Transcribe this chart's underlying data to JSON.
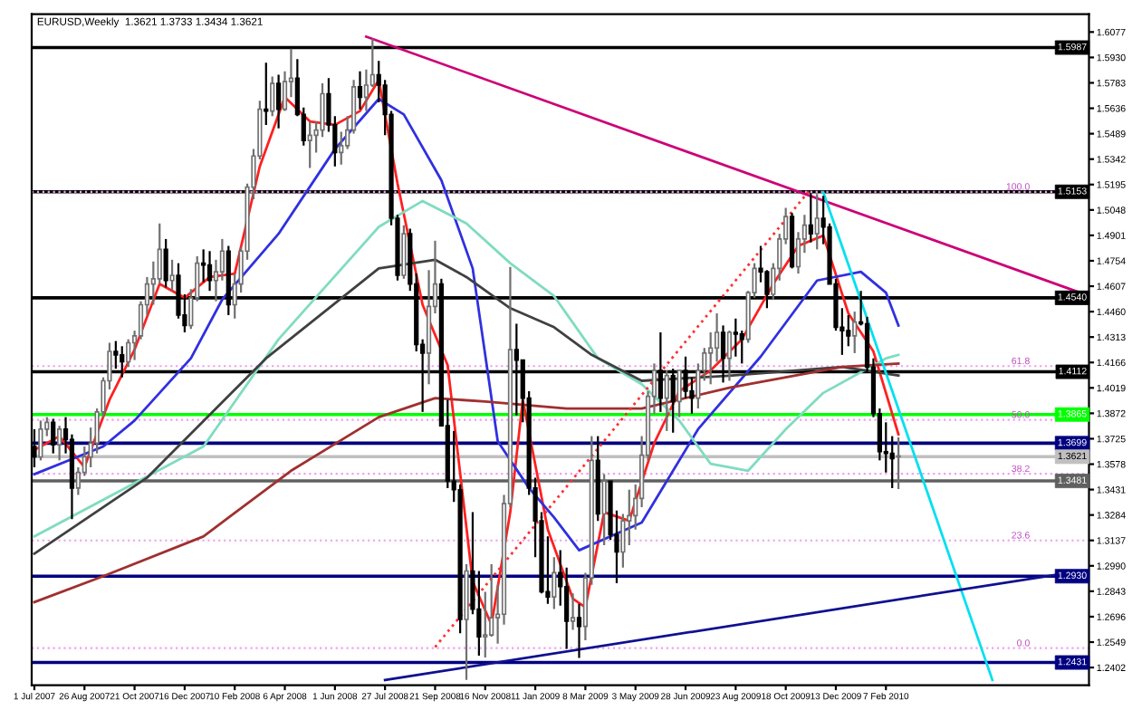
{
  "chart_data": {
    "type": "candlestick",
    "title": "EURUSD,Weekly  1.3621 1.3733 1.3434 1.3621",
    "x": [
      "2007-07-01",
      "2007-07-08",
      "2007-07-15",
      "2007-07-22",
      "2007-07-29",
      "2007-08-05",
      "2007-08-12",
      "2007-08-19",
      "2007-08-26",
      "2007-09-02",
      "2007-09-09",
      "2007-09-16",
      "2007-09-23",
      "2007-09-30",
      "2007-10-07",
      "2007-10-14",
      "2007-10-21",
      "2007-10-28",
      "2007-11-04",
      "2007-11-11",
      "2007-11-18",
      "2007-11-25",
      "2007-12-02",
      "2007-12-09",
      "2007-12-16",
      "2007-12-23",
      "2007-12-30",
      "2008-01-06",
      "2008-01-13",
      "2008-01-20",
      "2008-01-27",
      "2008-02-03",
      "2008-02-10",
      "2008-02-17",
      "2008-02-24",
      "2008-03-02",
      "2008-03-09",
      "2008-03-16",
      "2008-03-23",
      "2008-03-30",
      "2008-04-06",
      "2008-04-13",
      "2008-04-20",
      "2008-04-27",
      "2008-05-04",
      "2008-05-11",
      "2008-05-18",
      "2008-05-25",
      "2008-06-01",
      "2008-06-08",
      "2008-06-15",
      "2008-06-22",
      "2008-06-29",
      "2008-07-06",
      "2008-07-13",
      "2008-07-20",
      "2008-07-27",
      "2008-08-03",
      "2008-08-10",
      "2008-08-17",
      "2008-08-24",
      "2008-08-31",
      "2008-09-07",
      "2008-09-14",
      "2008-09-21",
      "2008-09-28",
      "2008-10-05",
      "2008-10-12",
      "2008-10-19",
      "2008-10-26",
      "2008-11-02",
      "2008-11-09",
      "2008-11-16",
      "2008-11-23",
      "2008-11-30",
      "2008-12-07",
      "2008-12-14",
      "2008-12-21",
      "2008-12-28",
      "2009-01-04",
      "2009-01-11",
      "2009-01-18",
      "2009-01-25",
      "2009-02-01",
      "2009-02-08",
      "2009-02-15",
      "2009-02-22",
      "2009-03-01",
      "2009-03-08",
      "2009-03-15",
      "2009-03-22",
      "2009-03-29",
      "2009-04-05",
      "2009-04-12",
      "2009-04-19",
      "2009-04-26",
      "2009-05-03",
      "2009-05-10",
      "2009-05-17",
      "2009-05-24",
      "2009-05-31",
      "2009-06-07",
      "2009-06-14",
      "2009-06-21",
      "2009-06-28",
      "2009-07-05",
      "2009-07-12",
      "2009-07-19",
      "2009-07-26",
      "2009-08-02",
      "2009-08-09",
      "2009-08-16",
      "2009-08-23",
      "2009-08-30",
      "2009-09-06",
      "2009-09-13",
      "2009-09-20",
      "2009-09-27",
      "2009-10-04",
      "2009-10-11",
      "2009-10-18",
      "2009-10-25",
      "2009-11-01",
      "2009-11-08",
      "2009-11-15",
      "2009-11-22",
      "2009-11-29",
      "2009-12-06",
      "2009-12-13",
      "2009-12-20",
      "2009-12-27",
      "2010-01-03",
      "2010-01-10",
      "2010-01-17",
      "2010-01-24",
      "2010-01-31",
      "2010-02-07",
      "2010-02-14",
      "2010-02-21"
    ],
    "ohlc": [
      [
        1.368,
        1.378,
        1.356,
        1.362
      ],
      [
        1.362,
        1.383,
        1.36,
        1.378
      ],
      [
        1.378,
        1.385,
        1.374,
        1.382
      ],
      [
        1.382,
        1.384,
        1.364,
        1.369
      ],
      [
        1.369,
        1.38,
        1.36,
        1.378
      ],
      [
        1.378,
        1.385,
        1.364,
        1.372
      ],
      [
        1.372,
        1.375,
        1.326,
        1.344
      ],
      [
        1.344,
        1.356,
        1.34,
        1.353
      ],
      [
        1.353,
        1.368,
        1.351,
        1.362
      ],
      [
        1.362,
        1.379,
        1.356,
        1.37
      ],
      [
        1.37,
        1.39,
        1.364,
        1.388
      ],
      [
        1.388,
        1.408,
        1.385,
        1.406
      ],
      [
        1.406,
        1.428,
        1.401,
        1.423
      ],
      [
        1.423,
        1.429,
        1.413,
        1.421
      ],
      [
        1.421,
        1.426,
        1.408,
        1.417
      ],
      [
        1.417,
        1.43,
        1.414,
        1.428
      ],
      [
        1.428,
        1.435,
        1.418,
        1.432
      ],
      [
        1.432,
        1.452,
        1.43,
        1.45
      ],
      [
        1.45,
        1.466,
        1.444,
        1.462
      ],
      [
        1.462,
        1.475,
        1.45,
        1.465
      ],
      [
        1.465,
        1.497,
        1.462,
        1.482
      ],
      [
        1.482,
        1.488,
        1.46,
        1.464
      ],
      [
        1.464,
        1.476,
        1.458,
        1.467
      ],
      [
        1.467,
        1.474,
        1.442,
        1.444
      ],
      [
        1.444,
        1.456,
        1.434,
        1.438
      ],
      [
        1.438,
        1.459,
        1.436,
        1.454
      ],
      [
        1.454,
        1.478,
        1.452,
        1.474
      ],
      [
        1.474,
        1.482,
        1.463,
        1.473
      ],
      [
        1.473,
        1.481,
        1.458,
        1.464
      ],
      [
        1.464,
        1.476,
        1.452,
        1.469
      ],
      [
        1.469,
        1.488,
        1.464,
        1.481
      ],
      [
        1.481,
        1.484,
        1.444,
        1.45
      ],
      [
        1.45,
        1.468,
        1.442,
        1.462
      ],
      [
        1.462,
        1.483,
        1.457,
        1.481
      ],
      [
        1.481,
        1.52,
        1.476,
        1.518
      ],
      [
        1.518,
        1.54,
        1.511,
        1.536
      ],
      [
        1.536,
        1.568,
        1.534,
        1.563
      ],
      [
        1.563,
        1.59,
        1.554,
        1.562
      ],
      [
        1.562,
        1.582,
        1.559,
        1.578
      ],
      [
        1.578,
        1.583,
        1.552,
        1.563
      ],
      [
        1.563,
        1.585,
        1.562,
        1.579
      ],
      [
        1.579,
        1.598,
        1.57,
        1.581
      ],
      [
        1.581,
        1.592,
        1.559,
        1.56
      ],
      [
        1.56,
        1.564,
        1.542,
        1.545
      ],
      [
        1.545,
        1.556,
        1.529,
        1.548
      ],
      [
        1.548,
        1.556,
        1.538,
        1.551
      ],
      [
        1.551,
        1.578,
        1.547,
        1.572
      ],
      [
        1.572,
        1.581,
        1.55,
        1.554
      ],
      [
        1.554,
        1.559,
        1.53,
        1.538
      ],
      [
        1.538,
        1.55,
        1.531,
        1.542
      ],
      [
        1.542,
        1.559,
        1.54,
        1.551
      ],
      [
        1.551,
        1.58,
        1.549,
        1.576
      ],
      [
        1.576,
        1.585,
        1.563,
        1.57
      ],
      [
        1.57,
        1.586,
        1.562,
        1.577
      ],
      [
        1.577,
        1.6038,
        1.576,
        1.583
      ],
      [
        1.583,
        1.591,
        1.567,
        1.577
      ],
      [
        1.577,
        1.58,
        1.548,
        1.56
      ],
      [
        1.56,
        1.562,
        1.496,
        1.5
      ],
      [
        1.5,
        1.502,
        1.464,
        1.467
      ],
      [
        1.467,
        1.496,
        1.465,
        1.491
      ],
      [
        1.491,
        1.494,
        1.458,
        1.462
      ],
      [
        1.462,
        1.468,
        1.423,
        1.427
      ],
      [
        1.427,
        1.43,
        1.388,
        1.422
      ],
      [
        1.422,
        1.47,
        1.404,
        1.449
      ],
      [
        1.449,
        1.487,
        1.445,
        1.462
      ],
      [
        1.462,
        1.465,
        1.38,
        1.38
      ],
      [
        1.38,
        1.395,
        1.344,
        1.348
      ],
      [
        1.348,
        1.377,
        1.336,
        1.343
      ],
      [
        1.343,
        1.346,
        1.26,
        1.268
      ],
      [
        1.268,
        1.3,
        1.233,
        1.296
      ],
      [
        1.296,
        1.33,
        1.271,
        1.274
      ],
      [
        1.274,
        1.296,
        1.247,
        1.258
      ],
      [
        1.258,
        1.284,
        1.246,
        1.259
      ],
      [
        1.259,
        1.3,
        1.258,
        1.269
      ],
      [
        1.269,
        1.288,
        1.254,
        1.271
      ],
      [
        1.271,
        1.34,
        1.265,
        1.335
      ],
      [
        1.335,
        1.4719,
        1.333,
        1.424
      ],
      [
        1.424,
        1.439,
        1.386,
        1.418
      ],
      [
        1.418,
        1.418,
        1.382,
        1.396
      ],
      [
        1.396,
        1.4,
        1.34,
        1.344
      ],
      [
        1.344,
        1.35,
        1.304,
        1.325
      ],
      [
        1.325,
        1.33,
        1.283,
        1.284
      ],
      [
        1.284,
        1.316,
        1.277,
        1.281
      ],
      [
        1.281,
        1.304,
        1.274,
        1.295
      ],
      [
        1.295,
        1.308,
        1.276,
        1.287
      ],
      [
        1.287,
        1.298,
        1.251,
        1.267
      ],
      [
        1.267,
        1.283,
        1.262,
        1.269
      ],
      [
        1.269,
        1.277,
        1.2457,
        1.264
      ],
      [
        1.264,
        1.295,
        1.256,
        1.292
      ],
      [
        1.292,
        1.374,
        1.288,
        1.36
      ],
      [
        1.36,
        1.374,
        1.325,
        1.329
      ],
      [
        1.329,
        1.352,
        1.311,
        1.348
      ],
      [
        1.348,
        1.348,
        1.314,
        1.317
      ],
      [
        1.317,
        1.331,
        1.289,
        1.307
      ],
      [
        1.307,
        1.329,
        1.298,
        1.325
      ],
      [
        1.325,
        1.343,
        1.311,
        1.328
      ],
      [
        1.328,
        1.346,
        1.32,
        1.338
      ],
      [
        1.338,
        1.374,
        1.333,
        1.363
      ],
      [
        1.363,
        1.4,
        1.36,
        1.397
      ],
      [
        1.397,
        1.416,
        1.387,
        1.412
      ],
      [
        1.412,
        1.434,
        1.388,
        1.396
      ],
      [
        1.396,
        1.412,
        1.377,
        1.409
      ],
      [
        1.409,
        1.413,
        1.376,
        1.394
      ],
      [
        1.394,
        1.412,
        1.385,
        1.412
      ],
      [
        1.412,
        1.42,
        1.396,
        1.4
      ],
      [
        1.4,
        1.408,
        1.387,
        1.396
      ],
      [
        1.396,
        1.416,
        1.39,
        1.412
      ],
      [
        1.412,
        1.425,
        1.406,
        1.422
      ],
      [
        1.422,
        1.434,
        1.404,
        1.425
      ],
      [
        1.425,
        1.445,
        1.417,
        1.434
      ],
      [
        1.434,
        1.438,
        1.405,
        1.419
      ],
      [
        1.419,
        1.435,
        1.406,
        1.434
      ],
      [
        1.434,
        1.442,
        1.42,
        1.433
      ],
      [
        1.433,
        1.435,
        1.416,
        1.43
      ],
      [
        1.43,
        1.458,
        1.428,
        1.457
      ],
      [
        1.457,
        1.474,
        1.454,
        1.471
      ],
      [
        1.471,
        1.484,
        1.463,
        1.469
      ],
      [
        1.469,
        1.47,
        1.448,
        1.456
      ],
      [
        1.456,
        1.474,
        1.453,
        1.471
      ],
      [
        1.471,
        1.491,
        1.464,
        1.488
      ],
      [
        1.488,
        1.506,
        1.485,
        1.501
      ],
      [
        1.501,
        1.503,
        1.471,
        1.472
      ],
      [
        1.472,
        1.492,
        1.468,
        1.488
      ],
      [
        1.488,
        1.502,
        1.48,
        1.496
      ],
      [
        1.496,
        1.5145,
        1.486,
        1.491
      ],
      [
        1.491,
        1.514,
        1.482,
        1.5
      ],
      [
        1.5,
        1.513,
        1.485,
        1.495
      ],
      [
        1.495,
        1.497,
        1.462,
        1.462
      ],
      [
        1.462,
        1.465,
        1.435,
        1.437
      ],
      [
        1.437,
        1.448,
        1.421,
        1.435
      ],
      [
        1.435,
        1.444,
        1.426,
        1.432
      ],
      [
        1.432,
        1.446,
        1.422,
        1.44
      ],
      [
        1.44,
        1.458,
        1.438,
        1.439
      ],
      [
        1.439,
        1.443,
        1.411,
        1.414
      ],
      [
        1.414,
        1.419,
        1.385,
        1.387
      ],
      [
        1.387,
        1.39,
        1.36,
        1.365
      ],
      [
        1.365,
        1.382,
        1.353,
        1.364
      ],
      [
        1.364,
        1.374,
        1.344,
        1.361
      ],
      [
        1.3621,
        1.3733,
        1.3434,
        1.3621
      ]
    ],
    "series": [
      {
        "type": "line",
        "color": "#ff2020",
        "line_style": "solid",
        "x": [
          "2007-07-01",
          "2007-07-29",
          "2007-08-26",
          "2007-09-23",
          "2007-10-21",
          "2007-11-18",
          "2007-12-16",
          "2008-01-13",
          "2008-02-10",
          "2008-03-09",
          "2008-04-06",
          "2008-05-04",
          "2008-06-01",
          "2008-06-29",
          "2008-07-20",
          "2008-08-10",
          "2008-09-07",
          "2008-10-05",
          "2008-11-02",
          "2008-11-23",
          "2008-12-14",
          "2008-12-28",
          "2009-01-25",
          "2009-02-22",
          "2009-03-08",
          "2009-03-29",
          "2009-04-26",
          "2009-05-24",
          "2009-06-21",
          "2009-07-26",
          "2009-08-30",
          "2009-10-04",
          "2009-11-01",
          "2009-11-29",
          "2009-12-27",
          "2010-01-24",
          "2010-02-21"
        ],
        "values": [
          1.366,
          1.374,
          1.356,
          1.395,
          1.424,
          1.462,
          1.454,
          1.466,
          1.468,
          1.53,
          1.57,
          1.556,
          1.554,
          1.562,
          1.58,
          1.52,
          1.45,
          1.415,
          1.29,
          1.265,
          1.33,
          1.395,
          1.32,
          1.28,
          1.275,
          1.33,
          1.325,
          1.37,
          1.4,
          1.412,
          1.43,
          1.462,
          1.484,
          1.49,
          1.445,
          1.423,
          1.375
        ]
      },
      {
        "type": "line",
        "color": "#3030e0",
        "line_style": "solid",
        "x": [
          "2007-07-01",
          "2007-09-16",
          "2007-10-21",
          "2007-12-23",
          "2008-01-27",
          "2008-03-30",
          "2008-06-01",
          "2008-07-20",
          "2008-08-17",
          "2008-09-28",
          "2008-11-02",
          "2008-11-30",
          "2009-01-04",
          "2009-02-01",
          "2009-03-01",
          "2009-05-10",
          "2009-07-12",
          "2009-09-20",
          "2009-11-22",
          "2010-01-10",
          "2010-02-07",
          "2010-02-21"
        ],
        "values": [
          1.352,
          1.368,
          1.383,
          1.419,
          1.453,
          1.491,
          1.54,
          1.569,
          1.56,
          1.522,
          1.471,
          1.371,
          1.344,
          1.327,
          1.308,
          1.324,
          1.378,
          1.42,
          1.464,
          1.469,
          1.457,
          1.438
        ]
      },
      {
        "type": "line",
        "color": "#7fdcc0",
        "line_style": "solid",
        "x": [
          "2007-07-01",
          "2008-01-06",
          "2008-03-30",
          "2008-07-20",
          "2008-09-07",
          "2008-10-26",
          "2008-12-14",
          "2009-02-01",
          "2009-03-22",
          "2009-05-10",
          "2009-06-21",
          "2009-07-26",
          "2009-09-06",
          "2009-10-18",
          "2009-11-29",
          "2010-02-07",
          "2010-02-21"
        ],
        "values": [
          1.316,
          1.368,
          1.43,
          1.495,
          1.51,
          1.497,
          1.474,
          1.455,
          1.419,
          1.404,
          1.383,
          1.358,
          1.354,
          1.378,
          1.399,
          1.419,
          1.421
        ]
      },
      {
        "type": "line",
        "color": "#404040",
        "line_style": "solid",
        "x": [
          "2007-07-01",
          "2007-11-04",
          "2008-03-16",
          "2008-07-20",
          "2008-09-21",
          "2008-10-26",
          "2008-12-14",
          "2009-02-01",
          "2009-03-15",
          "2009-05-10",
          "2009-08-16",
          "2009-12-20",
          "2010-02-21"
        ],
        "values": [
          1.306,
          1.35,
          1.419,
          1.471,
          1.476,
          1.466,
          1.448,
          1.437,
          1.421,
          1.406,
          1.409,
          1.414,
          1.409
        ]
      },
      {
        "type": "line",
        "color": "#a03030",
        "line_style": "solid",
        "x": [
          "2007-07-01",
          "2007-09-16",
          "2008-01-06",
          "2008-04-13",
          "2008-07-20",
          "2008-09-21",
          "2008-11-16",
          "2009-02-15",
          "2009-05-10",
          "2009-08-16",
          "2009-12-20",
          "2010-02-21"
        ],
        "values": [
          1.278,
          1.293,
          1.316,
          1.354,
          1.385,
          1.396,
          1.394,
          1.39,
          1.39,
          1.402,
          1.414,
          1.416
        ]
      },
      {
        "type": "line",
        "color": "#cc0077",
        "line_style": "solid",
        "x": [
          "2008-07-06",
          "2010-09-12"
        ],
        "values": [
          1.605,
          1.457
        ]
      },
      {
        "type": "line",
        "color": "#00e0f0",
        "line_style": "solid",
        "x": [
          "2009-11-29",
          "2010-06-06"
        ],
        "values": [
          1.515,
          1.233
        ]
      },
      {
        "type": "line",
        "color": "#101090",
        "line_style": "solid",
        "x": [
          "2008-07-27",
          "2010-09-12"
        ],
        "values": [
          1.233,
          1.296
        ]
      },
      {
        "type": "line",
        "color": "#ff3030",
        "line_style": "dotted",
        "x": [
          "2008-09-21",
          "2009-11-15"
        ],
        "values": [
          1.252,
          1.517
        ]
      }
    ],
    "annotations": [
      {
        "text": "100.0",
        "x": "2010-07-18",
        "y": 1.5153
      },
      {
        "text": "61.8",
        "x": "2010-07-18",
        "y": 1.4145
      },
      {
        "text": "50.0",
        "x": "2010-07-18",
        "y": 1.3834
      },
      {
        "text": "38.2",
        "x": "2010-07-18",
        "y": 1.3522
      },
      {
        "text": "23.6",
        "x": "2010-07-18",
        "y": 1.3137
      },
      {
        "text": "0.0",
        "x": "2010-07-18",
        "y": 1.2514
      }
    ],
    "ref_lines": [
      {
        "axis": "y",
        "value": 1.5987,
        "label": "1.5987",
        "color": "#000000",
        "line_style": "solid"
      },
      {
        "axis": "y",
        "value": 1.5153,
        "label": "1.5153",
        "color": "#000000",
        "line_style": "solid"
      },
      {
        "axis": "y",
        "value": 1.454,
        "label": "1.4540",
        "color": "#000000",
        "line_style": "solid"
      },
      {
        "axis": "y",
        "value": 1.4112,
        "label": "1.4112",
        "color": "#000000",
        "line_style": "solid"
      },
      {
        "axis": "y",
        "value": 1.3865,
        "label": "1.3865",
        "color": "#00ff00",
        "line_style": "solid"
      },
      {
        "axis": "y",
        "value": 1.3699,
        "label": "1.3699",
        "color": "#000080",
        "line_style": "solid"
      },
      {
        "axis": "y",
        "value": 1.3621,
        "label": "1.3621",
        "color": "#c0c0c0",
        "line_style": "solid"
      },
      {
        "axis": "y",
        "value": 1.3481,
        "label": "1.3481",
        "color": "#606060",
        "line_style": "solid"
      },
      {
        "axis": "y",
        "value": 1.293,
        "label": "1.2930",
        "color": "#000080",
        "line_style": "solid"
      },
      {
        "axis": "y",
        "value": 1.2431,
        "label": "1.2431",
        "color": "#000080",
        "line_style": "solid"
      },
      {
        "axis": "y",
        "value": 1.5153,
        "color": "#f0a0f0",
        "line_style": "dotted"
      },
      {
        "axis": "y",
        "value": 1.4145,
        "color": "#f0a0f0",
        "line_style": "dotted"
      },
      {
        "axis": "y",
        "value": 1.3834,
        "color": "#f0a0f0",
        "line_style": "dotted"
      },
      {
        "axis": "y",
        "value": 1.3522,
        "color": "#f0a0f0",
        "line_style": "dotted"
      },
      {
        "axis": "y",
        "value": 1.3137,
        "color": "#f0a0f0",
        "line_style": "dotted"
      },
      {
        "axis": "y",
        "value": 1.2514,
        "color": "#f0a0f0",
        "line_style": "dotted"
      }
    ],
    "xlim": [
      "2007-06-28",
      "2010-09-22"
    ],
    "ylim": [
      1.23,
      1.618
    ],
    "xticks": [
      {
        "value": "2007-07-01",
        "label": "1 Jul 2007"
      },
      {
        "value": "2007-08-26",
        "label": "26 Aug 2007"
      },
      {
        "value": "2007-10-21",
        "label": "21 Oct 2007"
      },
      {
        "value": "2007-12-16",
        "label": "16 Dec 2007"
      },
      {
        "value": "2008-02-10",
        "label": "10 Feb 2008"
      },
      {
        "value": "2008-04-06",
        "label": "6 Apr 2008"
      },
      {
        "value": "2008-06-01",
        "label": "1 Jun 2008"
      },
      {
        "value": "2008-07-27",
        "label": "27 Jul 2008"
      },
      {
        "value": "2008-09-21",
        "label": "21 Sep 2008"
      },
      {
        "value": "2008-11-16",
        "label": "16 Nov 2008"
      },
      {
        "value": "2009-01-11",
        "label": "11 Jan 2009"
      },
      {
        "value": "2009-03-08",
        "label": "8 Mar 2009"
      },
      {
        "value": "2009-05-03",
        "label": "3 May 2009"
      },
      {
        "value": "2009-06-28",
        "label": "28 Jun 2009"
      },
      {
        "value": "2009-08-23",
        "label": "23 Aug 2009"
      },
      {
        "value": "2009-10-18",
        "label": "18 Oct 2009"
      },
      {
        "value": "2009-12-13",
        "label": "13 Dec 2009"
      },
      {
        "value": "2010-02-07",
        "label": "7 Feb 2010"
      }
    ],
    "yticks": [
      {
        "value": 1.2402,
        "label": "1.2402"
      },
      {
        "value": 1.2549,
        "label": "1.2549"
      },
      {
        "value": 1.2696,
        "label": "1.2696"
      },
      {
        "value": 1.2843,
        "label": "1.2843"
      },
      {
        "value": 1.299,
        "label": "1.2990"
      },
      {
        "value": 1.3137,
        "label": "1.3137"
      },
      {
        "value": 1.3284,
        "label": "1.3284"
      },
      {
        "value": 1.3431,
        "label": "1.3431"
      },
      {
        "value": 1.3578,
        "label": "1.3578"
      },
      {
        "value": 1.3725,
        "label": "1.3725"
      },
      {
        "value": 1.3872,
        "label": "1.3872"
      },
      {
        "value": 1.4019,
        "label": "1.4019"
      },
      {
        "value": 1.4166,
        "label": "1.4166"
      },
      {
        "value": 1.4313,
        "label": "1.4313"
      },
      {
        "value": 1.446,
        "label": "1.4460"
      },
      {
        "value": 1.4607,
        "label": "1.4607"
      },
      {
        "value": 1.4754,
        "label": "1.4754"
      },
      {
        "value": 1.4901,
        "label": "1.4901"
      },
      {
        "value": 1.5048,
        "label": "1.5048"
      },
      {
        "value": 1.5195,
        "label": "1.5195"
      },
      {
        "value": 1.5342,
        "label": "1.5342"
      },
      {
        "value": 1.5489,
        "label": "1.5489"
      },
      {
        "value": 1.5636,
        "label": "1.5636"
      },
      {
        "value": 1.5783,
        "label": "1.5783"
      },
      {
        "value": 1.593,
        "label": "1.5930"
      },
      {
        "value": 1.6077,
        "label": "1.6077"
      }
    ],
    "grid": false
  }
}
